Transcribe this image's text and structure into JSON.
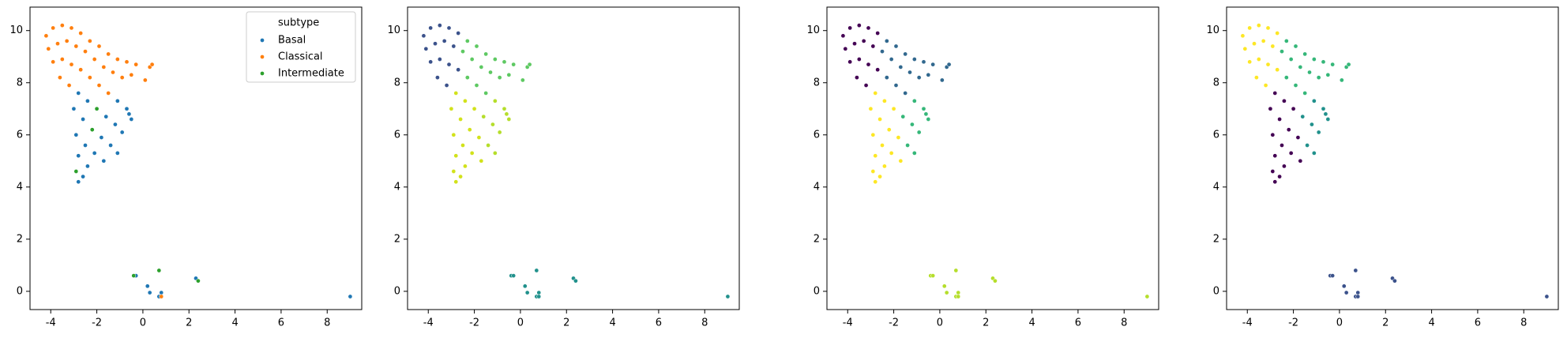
{
  "chart_data": [
    {
      "type": "scatter",
      "xlim": [
        -4.9,
        9.5
      ],
      "ylim": [
        -0.7,
        10.9
      ],
      "xticks": [
        -4,
        -2,
        0,
        2,
        4,
        6,
        8
      ],
      "yticks": [
        0,
        2,
        4,
        6,
        8,
        10
      ],
      "legend": "upper right",
      "legend_title": "subtype",
      "series": [
        {
          "name": "Basal",
          "color": "#1f77b4",
          "x": [
            -1.1,
            -0.7,
            -0.5,
            -0.6,
            -1.2,
            -0.9,
            -1.6,
            -1.4,
            -1.1,
            -2.8,
            -2.4,
            -3.0,
            -2.6,
            -1.8,
            -2.9,
            -2.5,
            -2.1,
            -1.7,
            -2.8,
            -2.4,
            -2.6,
            -2.8,
            -0.3,
            0.2,
            0.3,
            0.8,
            0.7,
            2.3,
            9.0
          ],
          "y": [
            7.3,
            7.0,
            6.6,
            6.8,
            6.4,
            6.1,
            6.7,
            5.6,
            5.3,
            7.6,
            7.3,
            7.0,
            6.6,
            5.9,
            6.0,
            5.6,
            5.3,
            5.0,
            5.2,
            4.8,
            4.4,
            4.2,
            0.6,
            0.2,
            -0.05,
            -0.05,
            -0.2,
            0.5,
            -0.2
          ]
        },
        {
          "name": "Classical",
          "color": "#ff7f0e",
          "x": [
            -4.2,
            -3.9,
            -3.5,
            -3.1,
            -2.7,
            -4.1,
            -3.7,
            -3.3,
            -2.9,
            -3.9,
            -3.5,
            -3.1,
            -2.7,
            -3.6,
            -3.2,
            -2.3,
            -1.9,
            -1.5,
            -1.1,
            -0.7,
            -0.3,
            0.3,
            0.4,
            -2.5,
            -2.1,
            -1.7,
            -1.3,
            -0.9,
            -0.5,
            0.1,
            -2.3,
            -1.9,
            -1.5,
            0.8
          ],
          "y": [
            9.8,
            10.1,
            10.2,
            10.1,
            9.9,
            9.3,
            9.5,
            9.6,
            9.4,
            8.8,
            8.9,
            8.7,
            8.5,
            8.2,
            7.9,
            9.6,
            9.4,
            9.1,
            8.9,
            8.8,
            8.7,
            8.6,
            8.7,
            9.2,
            8.9,
            8.6,
            8.4,
            8.2,
            8.3,
            8.1,
            8.2,
            7.9,
            7.6,
            -0.2
          ]
        },
        {
          "name": "Intermediate",
          "color": "#2ca02c",
          "x": [
            -2.0,
            -2.2,
            -2.9,
            -0.4,
            2.4,
            0.7
          ],
          "y": [
            7.0,
            6.2,
            4.6,
            0.6,
            0.4,
            0.8
          ]
        }
      ]
    },
    {
      "type": "scatter",
      "xlim": [
        -4.9,
        9.5
      ],
      "ylim": [
        -0.7,
        10.9
      ],
      "xticks": [
        -4,
        -2,
        0,
        2,
        4,
        6,
        8
      ],
      "yticks": [
        0,
        2,
        4,
        6,
        8,
        10
      ],
      "series": [
        {
          "color": "#3b528b",
          "x": [
            -4.2,
            -3.9,
            -3.5,
            -3.1,
            -2.7,
            -4.1,
            -3.7,
            -3.3,
            -2.9,
            -3.9,
            -3.5,
            -3.1,
            -2.7,
            -3.6,
            -3.2
          ],
          "y": [
            9.8,
            10.1,
            10.2,
            10.1,
            9.9,
            9.3,
            9.5,
            9.6,
            9.4,
            8.8,
            8.9,
            8.7,
            8.5,
            8.2,
            7.9
          ]
        },
        {
          "color": "#5ec962",
          "x": [
            -2.3,
            -1.9,
            -1.5,
            -1.1,
            -0.7,
            -0.3,
            0.3,
            0.4,
            -2.5,
            -2.1,
            -1.7,
            -1.3,
            -0.9,
            -0.5,
            0.1,
            -2.3,
            -1.9,
            -1.5
          ],
          "y": [
            9.6,
            9.4,
            9.1,
            8.9,
            8.8,
            8.7,
            8.6,
            8.7,
            9.2,
            8.9,
            8.6,
            8.4,
            8.2,
            8.3,
            8.1,
            8.2,
            7.9,
            7.6
          ]
        },
        {
          "color": "#b5de2b",
          "x": [
            -1.1,
            -0.7,
            -0.5,
            -0.6,
            -1.2,
            -0.9,
            -1.6,
            -1.4,
            -1.1
          ],
          "y": [
            7.3,
            7.0,
            6.6,
            6.8,
            6.4,
            6.1,
            6.7,
            5.6,
            5.3
          ]
        },
        {
          "color": "#d2e21b",
          "x": [
            -2.8,
            -2.4,
            -2.0,
            -3.0,
            -2.6,
            -2.2,
            -1.8,
            -2.9,
            -2.5,
            -2.1,
            -1.7,
            -2.8,
            -2.4,
            -2.9,
            -2.6,
            -2.8
          ],
          "y": [
            7.6,
            7.3,
            7.0,
            7.0,
            6.6,
            6.2,
            5.9,
            6.0,
            5.6,
            5.3,
            5.0,
            5.2,
            4.8,
            4.6,
            4.4,
            4.2
          ]
        },
        {
          "color": "#21918c",
          "x": [
            -0.4,
            -0.3,
            0.2,
            0.3,
            0.7,
            0.8,
            0.7,
            0.8,
            2.3,
            2.4,
            9.0
          ],
          "y": [
            0.6,
            0.6,
            0.2,
            -0.05,
            0.8,
            -0.05,
            -0.2,
            -0.2,
            0.5,
            0.4,
            -0.2
          ]
        }
      ]
    },
    {
      "type": "scatter",
      "xlim": [
        -4.9,
        9.5
      ],
      "ylim": [
        -0.7,
        10.9
      ],
      "xticks": [
        -4,
        -2,
        0,
        2,
        4,
        6,
        8
      ],
      "yticks": [
        0,
        2,
        4,
        6,
        8,
        10
      ],
      "series": [
        {
          "color": "#440154",
          "x": [
            -4.2,
            -3.9,
            -3.5,
            -3.1,
            -2.7,
            -4.1,
            -3.7,
            -3.3,
            -2.9,
            -3.9,
            -3.5,
            -3.1,
            -2.7,
            -3.6,
            -3.2
          ],
          "y": [
            9.8,
            10.1,
            10.2,
            10.1,
            9.9,
            9.3,
            9.5,
            9.6,
            9.4,
            8.8,
            8.9,
            8.7,
            8.5,
            8.2,
            7.9
          ]
        },
        {
          "color": "#31688e",
          "x": [
            -2.3,
            -1.9,
            -1.5,
            -1.1,
            -0.7,
            -0.3,
            0.3,
            0.4,
            -2.5,
            -2.1,
            -1.7,
            -1.3,
            -0.9,
            -0.5,
            0.1,
            -2.3,
            -1.9,
            -1.5
          ],
          "y": [
            9.6,
            9.4,
            9.1,
            8.9,
            8.8,
            8.7,
            8.6,
            8.7,
            9.2,
            8.9,
            8.6,
            8.4,
            8.2,
            8.3,
            8.1,
            8.2,
            7.9,
            7.6
          ]
        },
        {
          "color": "#35b779",
          "x": [
            -1.1,
            -0.7,
            -0.5,
            -0.6,
            -1.2,
            -0.9,
            -1.6,
            -1.4,
            -1.1
          ],
          "y": [
            7.3,
            7.0,
            6.6,
            6.8,
            6.4,
            6.1,
            6.7,
            5.6,
            5.3
          ]
        },
        {
          "color": "#fde725",
          "x": [
            -2.8,
            -2.4,
            -2.0,
            -3.0,
            -2.6,
            -2.2,
            -1.8,
            -2.9,
            -2.5,
            -2.1,
            -1.7,
            -2.8,
            -2.4,
            -2.9,
            -2.6,
            -2.8
          ],
          "y": [
            7.6,
            7.3,
            7.0,
            7.0,
            6.6,
            6.2,
            5.9,
            6.0,
            5.6,
            5.3,
            5.0,
            5.2,
            4.8,
            4.6,
            4.4,
            4.2
          ]
        },
        {
          "color": "#b5de2b",
          "x": [
            -0.4,
            -0.3,
            0.2,
            0.3,
            0.7,
            0.8,
            0.7,
            0.8,
            2.3,
            2.4,
            9.0
          ],
          "y": [
            0.6,
            0.6,
            0.2,
            -0.05,
            0.8,
            -0.05,
            -0.2,
            -0.2,
            0.5,
            0.4,
            -0.2
          ]
        }
      ]
    },
    {
      "type": "scatter",
      "xlim": [
        -4.9,
        9.5
      ],
      "ylim": [
        -0.7,
        10.9
      ],
      "xticks": [
        -4,
        -2,
        0,
        2,
        4,
        6,
        8
      ],
      "yticks": [
        0,
        2,
        4,
        6,
        8,
        10
      ],
      "series": [
        {
          "color": "#fde725",
          "x": [
            -4.2,
            -3.9,
            -3.5,
            -3.1,
            -2.7,
            -4.1,
            -3.7,
            -3.3,
            -2.9,
            -3.9,
            -3.5,
            -3.1,
            -2.7,
            -3.6,
            -3.2
          ],
          "y": [
            9.8,
            10.1,
            10.2,
            10.1,
            9.9,
            9.3,
            9.5,
            9.6,
            9.4,
            8.8,
            8.9,
            8.7,
            8.5,
            8.2,
            7.9
          ]
        },
        {
          "color": "#35b779",
          "x": [
            -2.3,
            -1.9,
            -1.5,
            -1.1,
            -0.7,
            -0.3,
            0.3,
            0.4,
            -2.5,
            -2.1,
            -1.7,
            -1.3,
            -0.9,
            -0.5,
            0.1,
            -2.3,
            -1.9,
            -1.5
          ],
          "y": [
            9.6,
            9.4,
            9.1,
            8.9,
            8.8,
            8.7,
            8.6,
            8.7,
            9.2,
            8.9,
            8.6,
            8.4,
            8.2,
            8.3,
            8.1,
            8.2,
            7.9,
            7.6
          ]
        },
        {
          "color": "#21918c",
          "x": [
            -1.1,
            -0.7,
            -0.5,
            -0.6,
            -1.2,
            -0.9,
            -1.6,
            -1.4,
            -1.1
          ],
          "y": [
            7.3,
            7.0,
            6.6,
            6.8,
            6.4,
            6.1,
            6.7,
            5.6,
            5.3
          ]
        },
        {
          "color": "#440154",
          "x": [
            -2.8,
            -2.4,
            -2.0,
            -3.0,
            -2.6,
            -2.2,
            -1.8,
            -2.9,
            -2.5,
            -2.1,
            -1.7,
            -2.8,
            -2.4,
            -2.9,
            -2.6,
            -2.8
          ],
          "y": [
            7.6,
            7.3,
            7.0,
            7.0,
            6.6,
            6.2,
            5.9,
            6.0,
            5.6,
            5.3,
            5.0,
            5.2,
            4.8,
            4.6,
            4.4,
            4.2
          ]
        },
        {
          "color": "#3b528b",
          "x": [
            -0.4,
            -0.3,
            0.2,
            0.3,
            0.7,
            0.8,
            0.7,
            0.8,
            2.3,
            2.4,
            9.0
          ],
          "y": [
            0.6,
            0.6,
            0.2,
            -0.05,
            0.8,
            -0.05,
            -0.2,
            -0.2,
            0.5,
            0.4,
            -0.2
          ]
        }
      ]
    }
  ]
}
